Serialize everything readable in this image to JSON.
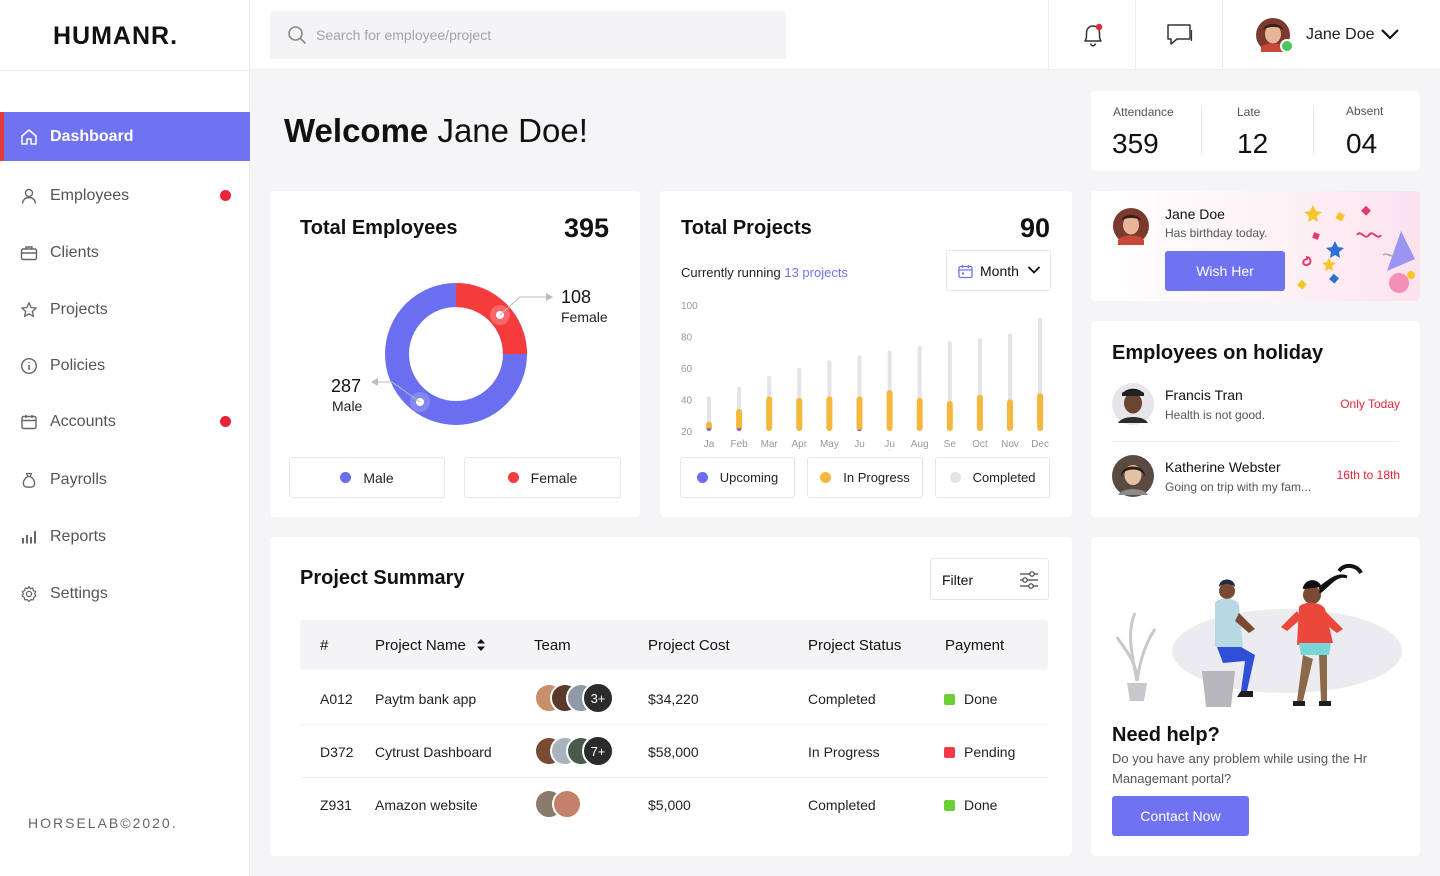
{
  "app": {
    "logo": "HUMANR.",
    "footer": "HORSELAB©2020."
  },
  "search": {
    "placeholder": "Search for employee/project"
  },
  "user": {
    "name": "Jane Doe"
  },
  "sidebar": {
    "items": [
      {
        "label": "Dashboard",
        "icon": "home-icon",
        "active": true,
        "dot": false
      },
      {
        "label": "Employees",
        "icon": "user-icon",
        "dot": true
      },
      {
        "label": "Clients",
        "icon": "briefcase-icon",
        "dot": false
      },
      {
        "label": "Projects",
        "icon": "star-icon",
        "dot": false
      },
      {
        "label": "Policies",
        "icon": "info-icon",
        "dot": false
      },
      {
        "label": "Accounts",
        "icon": "calendar-icon",
        "dot": true
      },
      {
        "label": "Payrolls",
        "icon": "money-bag-icon",
        "dot": false
      },
      {
        "label": "Reports",
        "icon": "bar-chart-icon",
        "dot": false
      },
      {
        "label": "Settings",
        "icon": "gear-icon",
        "dot": false
      }
    ]
  },
  "welcome": {
    "prefix": "Welcome",
    "name": "Jane Doe!"
  },
  "attendance": {
    "attendance_label": "Attendance",
    "attendance_value": "359",
    "late_label": "Late",
    "late_value": "12",
    "absent_label": "Absent",
    "absent_value": "04"
  },
  "employees_card": {
    "title": "Total Employees",
    "total": "395",
    "male_value": "287",
    "male_label": "Male",
    "female_value": "108",
    "female_label": "Female",
    "legend_male": "Male",
    "legend_female": "Female",
    "colors": {
      "male": "#6a6ef0",
      "female": "#f53b3b"
    }
  },
  "projects_card": {
    "title": "Total Projects",
    "total": "90",
    "running_label": "Currently running",
    "running_link": "13 projects",
    "period_select": "Month",
    "legend_upcoming": "Upcoming",
    "legend_in_progress": "In Progress",
    "legend_completed": "Completed",
    "colors": {
      "upcoming": "#6a6ef0",
      "in_progress": "#f5b83d",
      "completed": "#e4e4e8"
    }
  },
  "chart_data": {
    "type": "bar",
    "categories": [
      "Jan",
      "Feb",
      "Mar",
      "Apr",
      "May",
      "Jun",
      "Jul",
      "Aug",
      "Sep",
      "Oct",
      "Nov",
      "Dec"
    ],
    "tick_labels": [
      "Ja\nn",
      "Feb",
      "Mar",
      "Apr",
      "May",
      "Ju\nn",
      "Ju\nl",
      "Aug",
      "Se\np",
      "Oct",
      "Nov",
      "Dec"
    ],
    "yticks": [
      100,
      80,
      60,
      40,
      20
    ],
    "ylim": [
      20,
      100
    ],
    "series": [
      {
        "name": "Upcoming",
        "values": [
          22,
          22,
          20,
          20,
          20,
          21,
          20,
          20,
          20,
          20,
          20,
          20
        ]
      },
      {
        "name": "In Progress",
        "values": [
          26,
          34,
          42,
          41,
          42,
          42,
          46,
          41,
          39,
          43,
          40,
          44
        ]
      },
      {
        "name": "Completed",
        "values": [
          42,
          48,
          55,
          60,
          65,
          68,
          71,
          74,
          77,
          79,
          82,
          92
        ]
      }
    ]
  },
  "birthday": {
    "name": "Jane Doe",
    "message": "Has birthday today.",
    "button": "Wish Her"
  },
  "holiday": {
    "title": "Employees on holiday",
    "items": [
      {
        "name": "Francis Tran",
        "note": "Health is not good.",
        "when": "Only Today"
      },
      {
        "name": "Katherine Webster",
        "note": "Going on trip with my fam...",
        "when": "16th to 18th"
      }
    ]
  },
  "project_summary": {
    "title": "Project Summary",
    "filter_label": "Filter",
    "columns": [
      "#",
      "Project Name",
      "Team",
      "Project Cost",
      "Project Status",
      "Payment"
    ],
    "rows": [
      {
        "id": "A012",
        "name": "Paytm bank app",
        "team_more": "3+",
        "cost": "$34,220",
        "status": "Completed",
        "payment": "Done",
        "pay_color": "#6ccf37"
      },
      {
        "id": "D372",
        "name": "Cytrust Dashboard",
        "team_more": "7+",
        "cost": "$58,000",
        "status": "In Progress",
        "payment": "Pending",
        "pay_color": "#f23a4a"
      },
      {
        "id": "Z931",
        "name": "Amazon website",
        "team_more": "",
        "cost": "$5,000",
        "status": "Completed",
        "payment": "Done",
        "pay_color": "#6ccf37"
      }
    ]
  },
  "help": {
    "title": "Need help?",
    "text": "Do you have any problem while using the Hr Managemant portal?",
    "button": "Contact Now"
  }
}
